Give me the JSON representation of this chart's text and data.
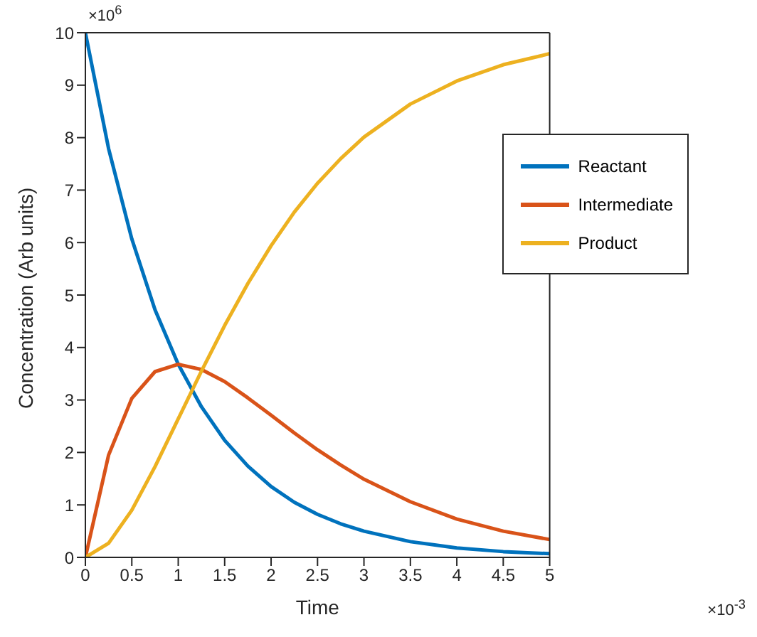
{
  "chart_data": {
    "type": "line",
    "xlabel": "Time",
    "ylabel": "Concentration (Arb units)",
    "annotations": [
      "×10$^{6}$",
      "×10$^{-3}$"
    ],
    "x": [
      0,
      0.25,
      0.5,
      0.75,
      1,
      1.25,
      1.5,
      1.75,
      2,
      2.25,
      2.5,
      2.75,
      3,
      3.5,
      4,
      4.5,
      5
    ],
    "series": [
      {
        "name": "Reactant",
        "color": "#0072bd",
        "values": [
          10,
          7.79,
          6.07,
          4.72,
          3.68,
          2.87,
          2.23,
          1.74,
          1.35,
          1.05,
          0.82,
          0.64,
          0.5,
          0.3,
          0.18,
          0.11,
          0.07
        ]
      },
      {
        "name": "Intermediate",
        "color": "#d95319",
        "values": [
          0,
          1.95,
          3.03,
          3.54,
          3.68,
          3.58,
          3.35,
          3.04,
          2.71,
          2.37,
          2.05,
          1.76,
          1.49,
          1.06,
          0.73,
          0.5,
          0.34
        ]
      },
      {
        "name": "Product",
        "color": "#edb120",
        "values": [
          0,
          0.27,
          0.9,
          1.73,
          2.64,
          3.55,
          4.42,
          5.22,
          5.94,
          6.58,
          7.13,
          7.6,
          8.01,
          8.64,
          9.08,
          9.39,
          9.6
        ]
      }
    ],
    "xlim": [
      0,
      5
    ],
    "xticks": [
      0,
      0.5,
      1,
      1.5,
      2,
      2.5,
      3,
      3.5,
      4,
      4.5,
      5
    ],
    "ylim": [
      0,
      10
    ],
    "yticks": [
      0,
      1,
      2,
      3,
      4,
      5,
      6,
      7,
      8,
      9,
      10
    ],
    "legend": "top right",
    "marker": "none",
    "line_style": "solid"
  }
}
